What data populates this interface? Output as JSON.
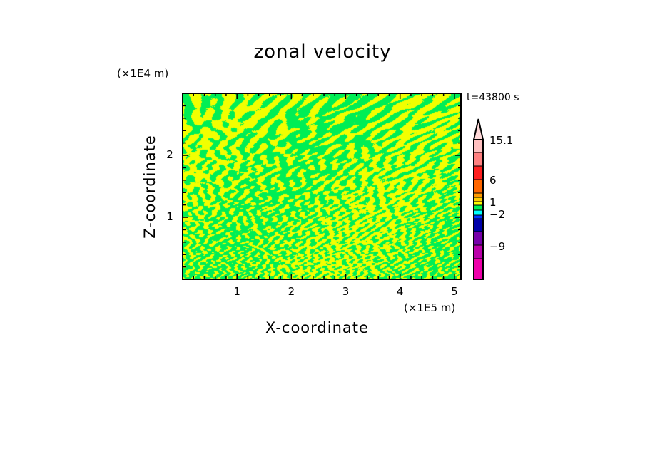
{
  "chart_data": {
    "type": "heatmap",
    "title": "zonal velocity",
    "xlabel": "X-coordinate",
    "ylabel": "Z-coordinate",
    "x_unit": "(×1E5 m)",
    "y_unit": "(×1E4 m)",
    "time_label": "t=43800 s",
    "xlim": [
      0,
      5.12
    ],
    "ylim": [
      0,
      3.0
    ],
    "x_ticks": [
      "1",
      "2",
      "3",
      "4",
      "5"
    ],
    "y_ticks": [
      "1",
      "2"
    ],
    "grid": false,
    "dominant_colors": [
      "#00ee55",
      "#f2ff00"
    ],
    "colorbar": {
      "labels": [
        "15.1",
        "6",
        "1",
        "−2",
        "−9"
      ],
      "label_values": [
        15.1,
        6,
        1,
        -2,
        -9
      ],
      "colors_top_to_bottom": [
        "#ffd8d8",
        "#ffc0c0",
        "#ff8080",
        "#ff2020",
        "#ff6600",
        "#ff9900",
        "#ffcc00",
        "#ffff00",
        "#00ee55",
        "#00ffff",
        "#0033ff",
        "#0000aa",
        "#7700aa",
        "#bb00aa",
        "#ee00aa"
      ],
      "extend": "max"
    }
  }
}
